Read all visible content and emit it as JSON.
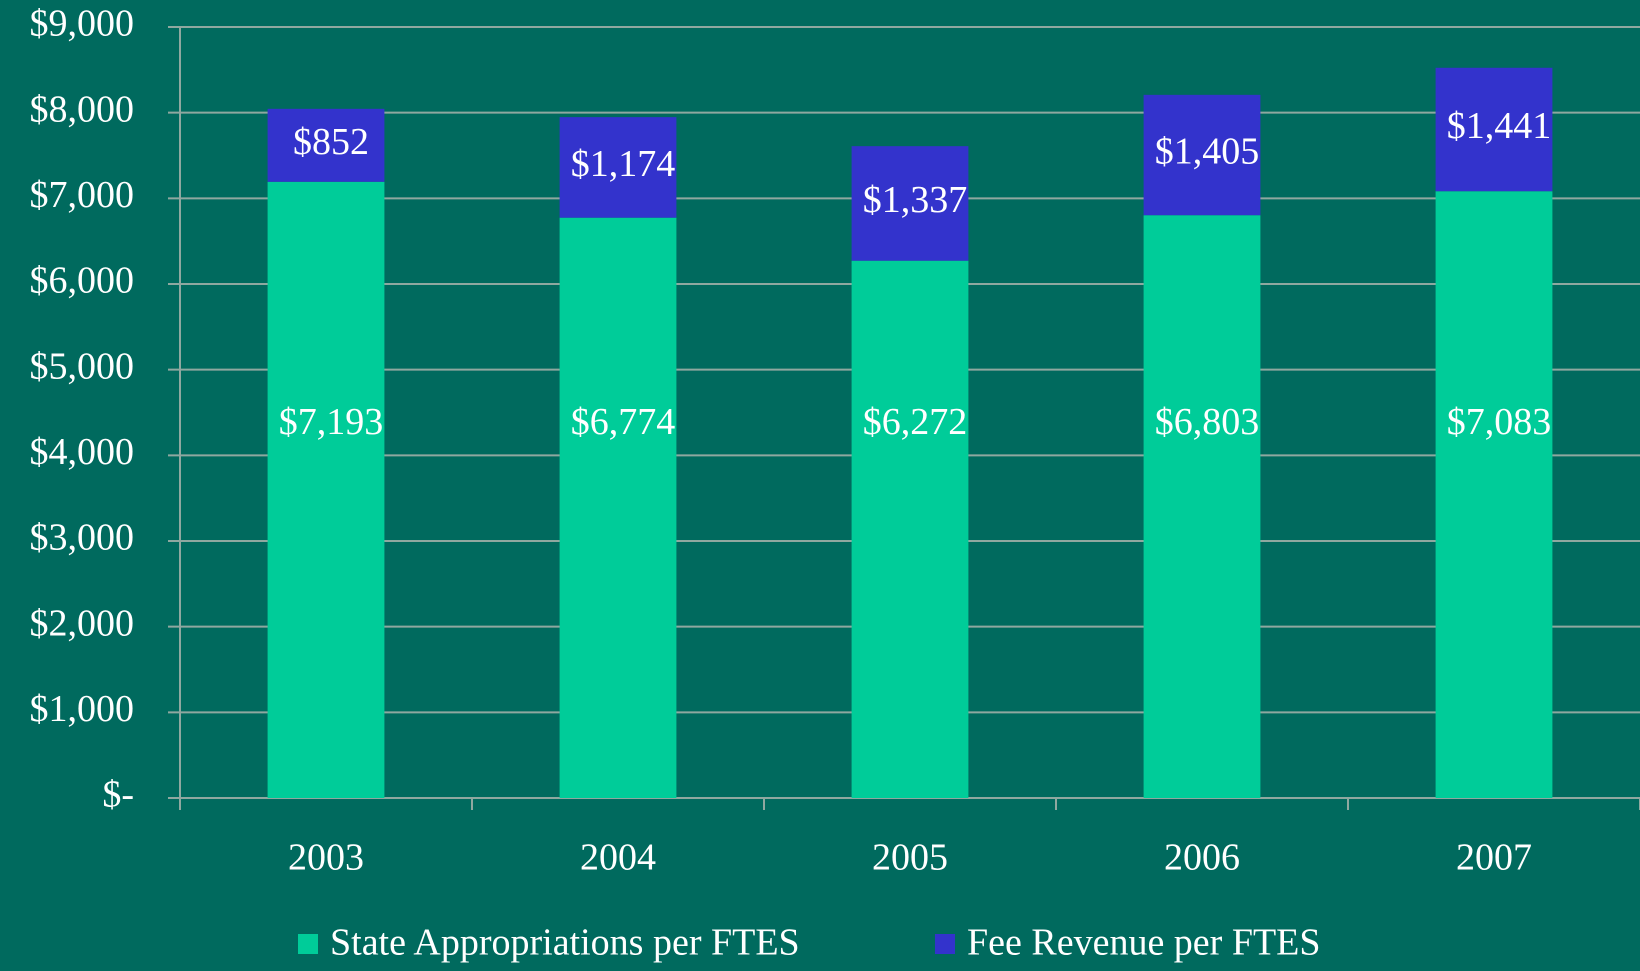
{
  "chart_data": {
    "type": "stacked_bar",
    "categories": [
      "2003",
      "2004",
      "2005",
      "2006",
      "2007"
    ],
    "series": [
      {
        "name": "State Appropriations per FTES",
        "color": "#00cc99",
        "values": [
          7193,
          6774,
          6272,
          6803,
          7083
        ],
        "value_labels": [
          "$7,193",
          "$6,774",
          "$6,272",
          "$6,803",
          "$7,083"
        ]
      },
      {
        "name": "Fee Revenue per FTES",
        "color": "#3333cc",
        "values": [
          852,
          1174,
          1337,
          1405,
          1441
        ],
        "value_labels": [
          "$852",
          "$1,174",
          "$1,337",
          "$1,405",
          "$1,441"
        ]
      }
    ],
    "ylim": [
      0,
      9000
    ],
    "yticks": [
      {
        "value": 0,
        "label": "$-"
      },
      {
        "value": 1000,
        "label": "$1,000"
      },
      {
        "value": 2000,
        "label": "$2,000"
      },
      {
        "value": 3000,
        "label": "$3,000"
      },
      {
        "value": 4000,
        "label": "$4,000"
      },
      {
        "value": 5000,
        "label": "$5,000"
      },
      {
        "value": 6000,
        "label": "$6,000"
      },
      {
        "value": 7000,
        "label": "$7,000"
      },
      {
        "value": 8000,
        "label": "$8,000"
      },
      {
        "value": 9000,
        "label": "$9,000"
      }
    ],
    "grid": true,
    "legend": "bottom"
  }
}
